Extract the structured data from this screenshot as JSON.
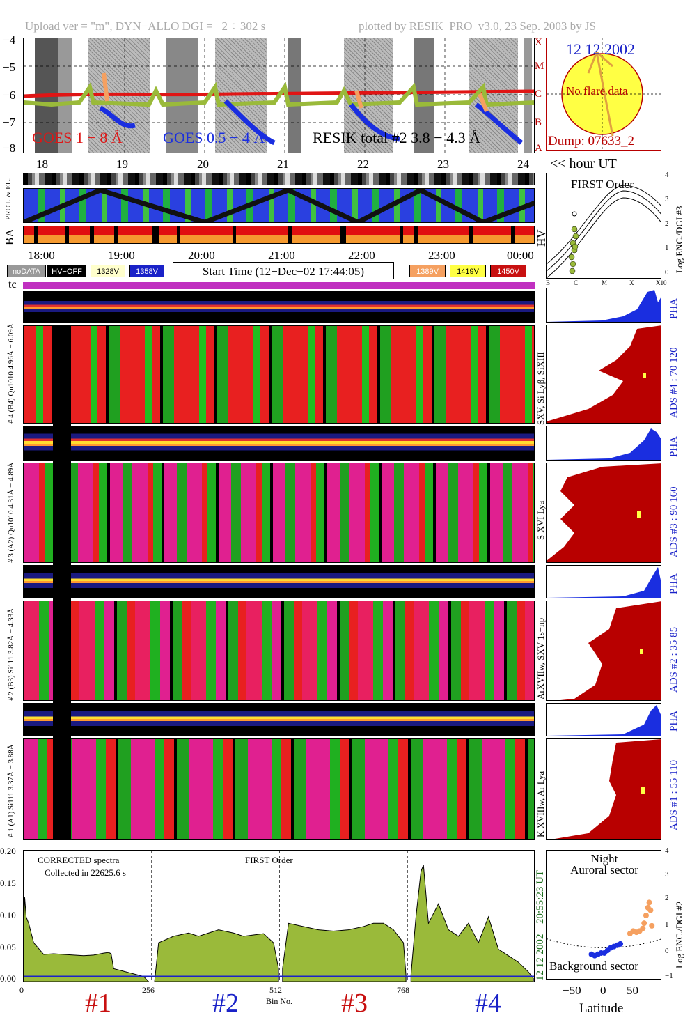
{
  "header": {
    "left": "Upload ver = \"m\", DYN−ALLO DGI =   2 ÷ 302 s",
    "right": "plotted by RESIK_PRO_v3.0, 23 Sep. 2003 by JS"
  },
  "colors": {
    "goes_long": "#e01515",
    "goes_short": "#1a2ee0",
    "resik": "#9aba3a",
    "flare": "#f5a060",
    "sun": "#ffff44",
    "dark_red": "#b80000",
    "blue": "#1a22c8"
  },
  "goes_panel": {
    "y_ticks": [
      "−4",
      "−5",
      "−6",
      "−7",
      "−8"
    ],
    "class_labels": [
      "X",
      "M",
      "C",
      "B",
      "A"
    ],
    "x_ticks": [
      "18",
      "19",
      "20",
      "21",
      "22",
      "23",
      "24"
    ],
    "legend_goes_long": "GOES 1 − 8 Å",
    "legend_goes_short": "GOES 0.5 − 4 Å",
    "legend_resik": "RESIK total #2  3.8 − 4.3 Å",
    "hour_label": "<< hour UT"
  },
  "sun_panel": {
    "date": "12 12 2002",
    "note": "No flare data",
    "dump": "Dump: 07633_2"
  },
  "orbit_panel": {
    "labels": [
      "PROT. & EL.",
      "BA",
      "HV"
    ],
    "time_ticks": [
      "18:00",
      "19:00",
      "20:00",
      "21:00",
      "22:00",
      "23:00",
      "00:00"
    ]
  },
  "first_order_panel": {
    "title": "FIRST Order",
    "ylabel": "Log ENC./DGI #3",
    "y_ticks": [
      "4",
      "3",
      "2",
      "1",
      "0"
    ],
    "x_ticks": [
      "B",
      "C",
      "M",
      "X",
      "X10"
    ]
  },
  "legend": {
    "nodata": "noDATA",
    "hvoff": "HV−OFF",
    "v1328": "1328V",
    "v1358": "1358V",
    "start_time": "Start Time (12−Dec−02 17:44:05)",
    "v1389": "1389V",
    "v1419": "1419V",
    "v1450": "1450V"
  },
  "tc_label": "tc",
  "channels": [
    {
      "pha_label": "# 4 (B4) Qu1010 4.96Å − 6.09Å",
      "lines": "SXV, Si Lyβ, SiXIII",
      "ads": "ADS #4 :   70 120",
      "pha": "PHA"
    },
    {
      "pha_label": "# 3 (A2) Qu1010 4.31Å − 4.89Å",
      "lines": "S XVI Lya",
      "ads": "ADS #3 :   90 160",
      "pha": "PHA"
    },
    {
      "pha_label": "# 2 (B3) Si111 3.82Å − 4.33Å",
      "lines": "ArXVIIw, SXV 1s−np",
      "ads": "ADS #2 :   35 85",
      "pha": "PHA"
    },
    {
      "pha_label": "# 1 (A1) Si111 3.37Å − 3.88Å",
      "lines": "K XVIIIw, Ar Lya",
      "ads": "ADS #1 :   55 110",
      "pha": "PHA"
    }
  ],
  "chart_data": [
    {
      "type": "area",
      "title": "",
      "annotation_1": "CORRECTED spectra",
      "annotation_2": "Collected in 22625.6 s",
      "annotation_3": "FIRST Order",
      "xlabel": "Bin No.",
      "x_ticks": [
        "0",
        "256",
        "512",
        "768"
      ],
      "y_ticks": [
        "0.20",
        "0.15",
        "0.10",
        "0.05",
        "0.00"
      ],
      "ylim": [
        0,
        0.2
      ],
      "xlim": [
        0,
        1024
      ],
      "right_time": "20:55:23 UT",
      "right_date": "12 12 2002",
      "channel_labels": [
        "#1",
        "#2",
        "#3",
        "#4"
      ],
      "segments": [
        {
          "x": [
            0,
            2,
            5,
            10,
            20,
            40,
            60,
            80,
            100,
            120,
            140,
            160,
            170,
            175,
            180,
            240,
            250
          ],
          "y": [
            0.08,
            0.13,
            0.1,
            0.09,
            0.06,
            0.042,
            0.043,
            0.042,
            0.041,
            0.04,
            0.041,
            0.044,
            0.045,
            0.043,
            0.02,
            0.008,
            0.0
          ]
        },
        {
          "x": [
            262,
            270,
            300,
            330,
            350,
            370,
            390,
            420,
            440,
            460,
            480,
            500,
            510
          ],
          "y": [
            0.0,
            0.06,
            0.07,
            0.075,
            0.07,
            0.075,
            0.08,
            0.075,
            0.07,
            0.072,
            0.074,
            0.06,
            0.02
          ]
        },
        {
          "x": [
            518,
            530,
            560,
            590,
            620,
            650,
            680,
            700,
            720,
            740,
            760,
            765
          ],
          "y": [
            0.02,
            0.09,
            0.085,
            0.08,
            0.078,
            0.08,
            0.085,
            0.09,
            0.09,
            0.08,
            0.06,
            0.01
          ]
        },
        {
          "x": [
            775,
            785,
            795,
            800,
            810,
            830,
            850,
            870,
            890,
            910,
            930,
            950,
            970,
            990,
            1010,
            1020
          ],
          "y": [
            0.01,
            0.1,
            0.17,
            0.18,
            0.09,
            0.12,
            0.08,
            0.07,
            0.09,
            0.06,
            0.1,
            0.05,
            0.04,
            0.03,
            0.015,
            0.005
          ]
        }
      ]
    },
    {
      "type": "scatter",
      "title": "",
      "label_top_1": "Night",
      "label_top_2": "Auroral sector",
      "label_bottom": "Background sector",
      "xlabel": "Latitude",
      "ylabel": "Log ENC./DGI #2",
      "x_ticks": [
        "−50",
        "0",
        "50"
      ],
      "y_ticks": [
        "4",
        "3",
        "2",
        "1",
        "0",
        "−1"
      ],
      "xlim": [
        -90,
        90
      ],
      "ylim": [
        -1,
        4
      ],
      "series": [
        {
          "x": [
            -20,
            -15,
            -10,
            -5,
            0,
            5,
            10,
            15,
            20,
            25
          ],
          "y": [
            0.0,
            -0.05,
            0.0,
            0.05,
            0.05,
            0.15,
            0.25,
            0.3,
            0.35,
            0.4
          ]
        },
        {
          "x": [
            40,
            45,
            50,
            55,
            60,
            62,
            65,
            68,
            70,
            72,
            74
          ],
          "y": [
            0.8,
            0.9,
            0.85,
            0.9,
            1.0,
            1.2,
            1.5,
            1.8,
            2.0,
            1.7,
            1.1
          ]
        }
      ]
    }
  ]
}
